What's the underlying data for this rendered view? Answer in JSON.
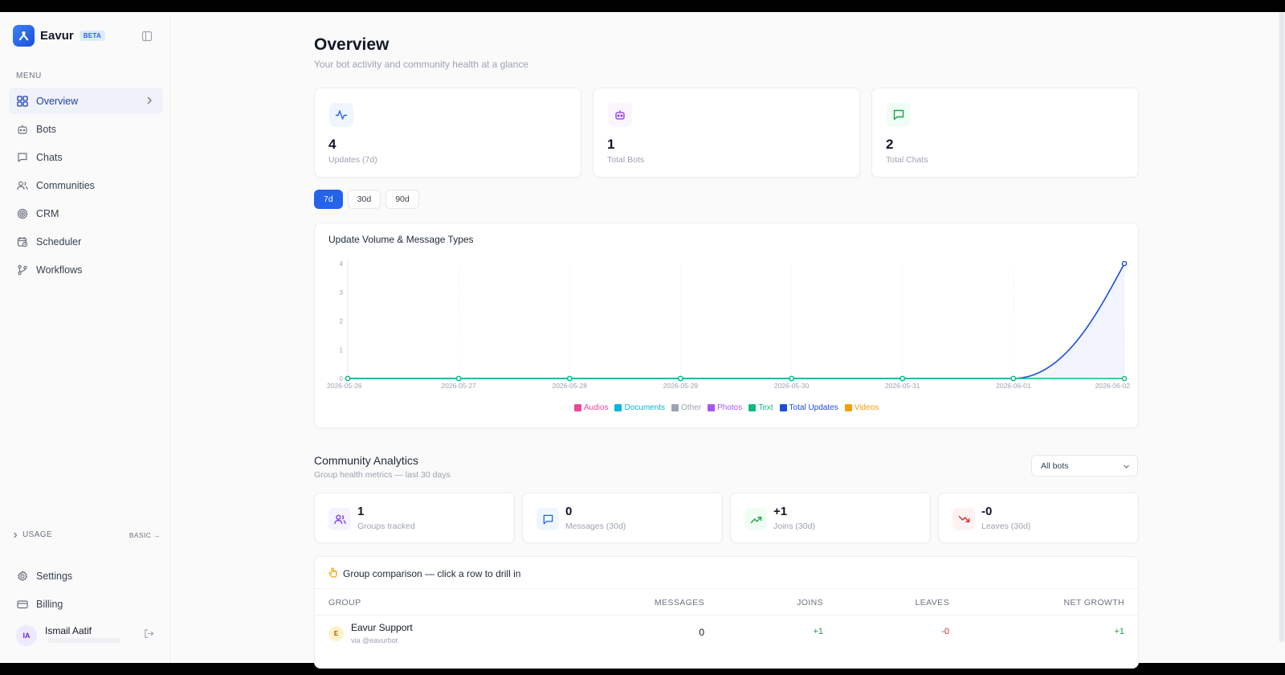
{
  "brand": {
    "name": "Eavur",
    "badge": "BETA"
  },
  "sidebar": {
    "menu_label": "MENU",
    "items": [
      {
        "label": "Overview",
        "icon": "grid-icon",
        "active": true
      },
      {
        "label": "Bots",
        "icon": "bot-icon"
      },
      {
        "label": "Chats",
        "icon": "chat-icon"
      },
      {
        "label": "Communities",
        "icon": "users-icon"
      },
      {
        "label": "CRM",
        "icon": "target-icon"
      },
      {
        "label": "Scheduler",
        "icon": "calendar-clock-icon"
      },
      {
        "label": "Workflows",
        "icon": "git-branch-icon"
      }
    ],
    "usage_label": "USAGE",
    "plan_label": "BASIC →",
    "bottom_items": [
      {
        "label": "Settings",
        "icon": "gear-icon"
      },
      {
        "label": "Billing",
        "icon": "credit-card-icon"
      }
    ],
    "user": {
      "initials": "IA",
      "name": "Ismail Aatif"
    }
  },
  "header": {
    "title": "Overview",
    "subtitle": "Your bot activity and community health at a glance"
  },
  "stats": [
    {
      "value": "4",
      "label": "Updates (7d)",
      "icon": "activity-icon",
      "color": "#2563eb",
      "bg": "#eff6ff"
    },
    {
      "value": "1",
      "label": "Total Bots",
      "icon": "bot-icon",
      "color": "#9333ea",
      "bg": "#faf5ff"
    },
    {
      "value": "2",
      "label": "Total Chats",
      "icon": "message-square-icon",
      "color": "#16a34a",
      "bg": "#f0fdf4"
    }
  ],
  "range": {
    "options": [
      "7d",
      "30d",
      "90d"
    ],
    "selected": "7d"
  },
  "chart_data": {
    "type": "line",
    "title": "Update Volume & Message Types",
    "x": [
      "2026-05-26",
      "2026-05-27",
      "2026-05-28",
      "2026-05-29",
      "2026-05-30",
      "2026-05-31",
      "2026-06-01",
      "2026-06-02"
    ],
    "y_ticks": [
      0,
      1,
      2,
      3,
      4
    ],
    "ylim": [
      0,
      4
    ],
    "series": [
      {
        "name": "Total Updates",
        "values": [
          0,
          0,
          0,
          0,
          0,
          0,
          0,
          4
        ],
        "color": "#1d4ed8"
      },
      {
        "name": "Text",
        "values": [
          0,
          0,
          0,
          0,
          0,
          0,
          0,
          0
        ],
        "color": "#10b981"
      }
    ],
    "legend": [
      {
        "name": "Audios",
        "color": "#ec4899"
      },
      {
        "name": "Documents",
        "color": "#06b6d4"
      },
      {
        "name": "Other",
        "color": "#9ca3af"
      },
      {
        "name": "Photos",
        "color": "#a855f7"
      },
      {
        "name": "Text",
        "color": "#10b981"
      },
      {
        "name": "Total Updates",
        "color": "#1d4ed8"
      },
      {
        "name": "Videos",
        "color": "#f59e0b"
      }
    ],
    "legend_placement": "bottom-center",
    "grid": true
  },
  "community": {
    "title": "Community Analytics",
    "subtitle": "Group health metrics — last 30 days",
    "bot_filter": "All bots",
    "metrics": [
      {
        "value": "1",
        "label": "Groups tracked",
        "icon": "users-icon",
        "color": "#7c3aed",
        "bg": "#f5f3ff"
      },
      {
        "value": "0",
        "label": "Messages (30d)",
        "icon": "message-square-icon",
        "color": "#2563eb",
        "bg": "#eff6ff"
      },
      {
        "value": "+1",
        "label": "Joins (30d)",
        "icon": "trending-up-icon",
        "color": "#16a34a",
        "bg": "#f0fdf4"
      },
      {
        "value": "-0",
        "label": "Leaves (30d)",
        "icon": "trending-down-icon",
        "color": "#dc2626",
        "bg": "#fef2f2"
      }
    ],
    "table": {
      "title": "Group comparison — click a row to drill in",
      "columns": [
        "GROUP",
        "MESSAGES",
        "JOINS",
        "LEAVES",
        "NET GROWTH"
      ],
      "rows": [
        {
          "initial": "E",
          "name": "Eavur Support",
          "via": "via @eavurbot",
          "messages": "0",
          "joins": "+1",
          "leaves": "-0",
          "net": "+1"
        }
      ]
    }
  }
}
